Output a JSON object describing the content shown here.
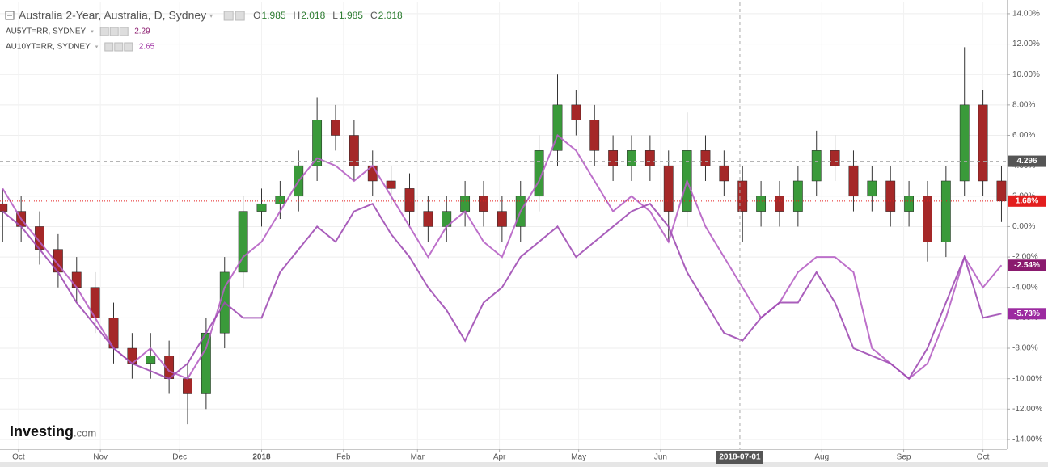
{
  "chart_data": {
    "type": "candlestick",
    "title": "Australia 2-Year, Australia, D, Sydney",
    "readout": {
      "labels": [
        "O",
        "H",
        "L",
        "C"
      ],
      "values": [
        1.985,
        2.018,
        1.985,
        2.018
      ]
    },
    "x": [
      "2017-09-25",
      "2017-10-02",
      "2017-10-09",
      "2017-10-16",
      "2017-10-23",
      "2017-10-30",
      "2017-11-06",
      "2017-11-13",
      "2017-11-20",
      "2017-11-27",
      "2017-12-04",
      "2017-12-11",
      "2017-12-18",
      "2017-12-25",
      "2018-01-01",
      "2018-01-08",
      "2018-01-15",
      "2018-01-22",
      "2018-01-29",
      "2018-02-05",
      "2018-02-12",
      "2018-02-19",
      "2018-02-26",
      "2018-03-05",
      "2018-03-12",
      "2018-03-19",
      "2018-03-26",
      "2018-04-02",
      "2018-04-09",
      "2018-04-16",
      "2018-04-23",
      "2018-04-30",
      "2018-05-07",
      "2018-05-14",
      "2018-05-21",
      "2018-05-28",
      "2018-06-04",
      "2018-06-11",
      "2018-06-18",
      "2018-06-25",
      "2018-07-02",
      "2018-07-09",
      "2018-07-16",
      "2018-07-23",
      "2018-07-30",
      "2018-08-06",
      "2018-08-13",
      "2018-08-20",
      "2018-08-27",
      "2018-09-03",
      "2018-09-10",
      "2018-09-17",
      "2018-09-24",
      "2018-10-01",
      "2018-10-08"
    ],
    "open": [
      1.5,
      1,
      0,
      -1.5,
      -3,
      -4,
      -6,
      -8,
      -9,
      -8.5,
      -10,
      -11,
      -7,
      -3,
      1,
      1.5,
      2,
      4,
      7,
      6,
      4,
      3,
      2.5,
      1,
      0,
      1,
      2,
      1,
      0,
      2,
      5,
      8,
      7,
      5,
      4,
      5,
      4,
      1,
      5,
      4,
      3,
      1,
      2,
      1,
      3,
      5,
      4,
      2,
      3,
      1,
      2,
      -1,
      3,
      8,
      3
    ],
    "high": [
      2.5,
      2,
      1,
      -0.5,
      -2,
      -3,
      -5,
      -7,
      -7,
      -7.5,
      -9,
      -6,
      -2,
      2,
      2.5,
      3,
      5,
      8.5,
      8,
      7,
      5,
      4,
      3.5,
      2,
      2,
      3,
      3,
      2,
      3,
      6,
      10,
      9,
      8,
      6,
      6,
      6,
      5,
      7.5,
      6,
      5,
      4,
      3,
      3,
      4,
      6.3,
      6,
      5,
      4,
      4,
      3,
      3,
      4,
      11.8,
      9,
      4
    ],
    "low": [
      -1,
      -1,
      -2.5,
      -4,
      -5,
      -7,
      -9,
      -10,
      -10,
      -11,
      -13,
      -12,
      -8,
      -4,
      0,
      0.5,
      1,
      3,
      5,
      3,
      2,
      1.5,
      0,
      -1,
      -1,
      0,
      0,
      -1,
      -1,
      1,
      4,
      6,
      4,
      3,
      3,
      3,
      -1,
      0,
      3,
      2,
      -1,
      0,
      0,
      0,
      2,
      3,
      1,
      1,
      0,
      0,
      -2.3,
      -2,
      2,
      2,
      0.3
    ],
    "close": [
      1,
      0,
      -1.5,
      -3,
      -4,
      -6,
      -8,
      -9,
      -8.5,
      -10,
      -11,
      -7,
      -3,
      1,
      1.5,
      2,
      4,
      7,
      6,
      4,
      3,
      2.5,
      1,
      0,
      1,
      2,
      1,
      0,
      2,
      5,
      8,
      7,
      5,
      4,
      5,
      4,
      1,
      5,
      4,
      3,
      1,
      2,
      1,
      3,
      5,
      4,
      2,
      3,
      1,
      2,
      -1,
      3,
      8,
      3,
      1.68
    ],
    "up_color": "#3a9a3a",
    "down_color": "#a52828",
    "last_label": "1.68%",
    "last_color": "#e31e1e",
    "series": [
      {
        "name": "AU5YT=RR, SYDNEY",
        "readout": 2.29,
        "color": "#b660c4",
        "label_color": "#8a1a6e",
        "last_label": "-2.54%",
        "values": [
          2.5,
          0.5,
          -1,
          -2.5,
          -4,
          -6,
          -8,
          -9,
          -8,
          -9.5,
          -10,
          -8,
          -4,
          -2,
          -1,
          1,
          3,
          4.5,
          4,
          3,
          4,
          2,
          0,
          -2,
          0,
          1,
          -1,
          -2,
          1,
          3,
          6,
          5,
          3,
          1,
          2,
          1,
          -1,
          3,
          0,
          -2,
          -4,
          -6,
          -5,
          -3,
          -2,
          -2,
          -3,
          -8,
          -9,
          -10,
          -9,
          -6,
          -2,
          -4,
          -2.54
        ]
      },
      {
        "name": "AU10YT=RR, SYDNEY",
        "readout": 2.65,
        "color": "#a04cb4",
        "label_color": "#9c2aa0",
        "last_label": "-5.73%",
        "values": [
          1,
          0,
          -1.5,
          -3,
          -5,
          -6.5,
          -8,
          -9,
          -9.5,
          -10,
          -9,
          -7,
          -5,
          -6,
          -6,
          -3,
          -1.5,
          0,
          -1,
          1,
          1.5,
          -0.5,
          -2,
          -4,
          -5.5,
          -7.5,
          -5,
          -4,
          -2,
          -1,
          0,
          -2,
          -1,
          0,
          1,
          1.5,
          0,
          -3,
          -5,
          -7,
          -7.5,
          -6,
          -5,
          -5,
          -3,
          -5,
          -8,
          -8.5,
          -9,
          -10,
          -8,
          -5,
          -2,
          -6,
          -5.73
        ]
      }
    ],
    "xlim": [
      "2017-09-24",
      "2018-10-10"
    ],
    "xticks": [
      {
        "value": "2017-10-01",
        "label": "Oct"
      },
      {
        "value": "2017-11-01",
        "label": "Nov"
      },
      {
        "value": "2017-12-01",
        "label": "Dec"
      },
      {
        "value": "2018-01-01",
        "label": "2018"
      },
      {
        "value": "2018-02-01",
        "label": "Feb"
      },
      {
        "value": "2018-03-01",
        "label": "Mar"
      },
      {
        "value": "2018-04-01",
        "label": "Apr"
      },
      {
        "value": "2018-05-01",
        "label": "May"
      },
      {
        "value": "2018-06-01",
        "label": "Jun"
      },
      {
        "value": "2018-08-01",
        "label": "Aug"
      },
      {
        "value": "2018-09-01",
        "label": "Sep"
      },
      {
        "value": "2018-10-01",
        "label": "Oct"
      }
    ],
    "ylim": [
      -14.64,
      14.74
    ],
    "yticks": [
      {
        "value": 14,
        "label": "14.00%"
      },
      {
        "value": 12,
        "label": "12.00%"
      },
      {
        "value": 10,
        "label": "10.00%"
      },
      {
        "value": 8,
        "label": "8.00%"
      },
      {
        "value": 6,
        "label": "6.00%"
      },
      {
        "value": 4,
        "label": "4.00%"
      },
      {
        "value": 2,
        "label": "2.00%"
      },
      {
        "value": 0,
        "label": "0.00%"
      },
      {
        "value": -2,
        "label": "-2.00%"
      },
      {
        "value": -4,
        "label": "-4.00%"
      },
      {
        "value": -6,
        "label": "-6.00%"
      },
      {
        "value": -8,
        "label": "-8.00%"
      },
      {
        "value": -10,
        "label": "-10.00%"
      },
      {
        "value": -12,
        "label": "-12.00%"
      },
      {
        "value": -14,
        "label": "-14.00%"
      }
    ],
    "grid": true,
    "crosshair": {
      "x": "2018-07-01",
      "y": 4.296
    },
    "watermark": {
      "brand": "Investing",
      "suffix": ".com"
    }
  }
}
